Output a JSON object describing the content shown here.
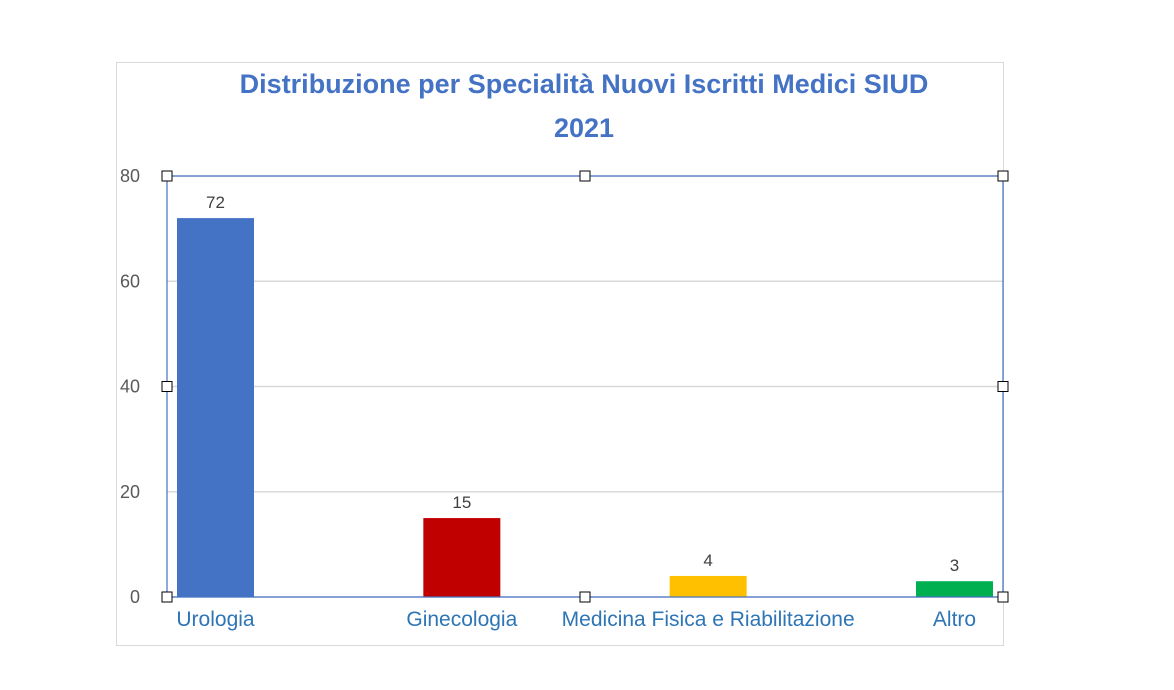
{
  "chart_data": {
    "type": "bar",
    "title_line1": "Distribuzione per Specialità Nuovi Iscritti Medici SIUD",
    "title_line2": "2021",
    "categories": [
      "Urologia",
      "Ginecologia",
      "Medicina Fisica e Riabilitazione",
      "Altro"
    ],
    "values": [
      72,
      15,
      4,
      3
    ],
    "data_labels": [
      "72",
      "15",
      "4",
      "3"
    ],
    "colors": [
      "#4472c4",
      "#c00000",
      "#ffc000",
      "#00b050"
    ],
    "ylim": [
      0,
      80
    ],
    "yticks": [
      "0",
      "20",
      "40",
      "60",
      "80"
    ],
    "ytick_values": [
      0,
      20,
      40,
      60,
      80
    ],
    "grid": true,
    "legend": "none",
    "selected": true,
    "title_color": "#4472c4",
    "category_label_color": "#2e75b6",
    "selection_color": "#4472c4"
  }
}
